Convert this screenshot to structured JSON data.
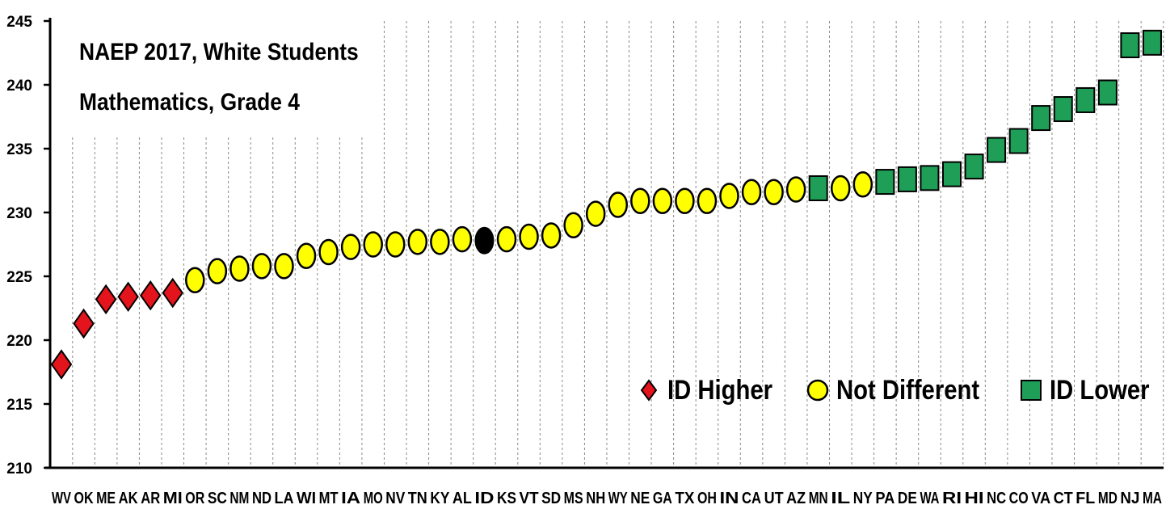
{
  "title_line1": "NAEP 2017, White Students",
  "title_line2": "Mathematics, Grade 4",
  "legend": {
    "higher": "ID Higher",
    "same": "Not Different",
    "lower": "ID Lower"
  },
  "colors": {
    "higher": "#e3141b",
    "same": "#ffff00",
    "reference": "#000000",
    "lower": "#1f9e57"
  },
  "chart_data": {
    "type": "scatter",
    "ylim": [
      210,
      245
    ],
    "yticks": [
      210,
      215,
      220,
      225,
      230,
      235,
      240,
      245
    ],
    "grid": "vertical dashed",
    "legend_placement": "bottom-right",
    "categories": [
      "WV",
      "OK",
      "ME",
      "AK",
      "AR",
      "MI",
      "OR",
      "SC",
      "NM",
      "ND",
      "LA",
      "WI",
      "MT",
      "IA",
      "MO",
      "NV",
      "TN",
      "KY",
      "AL",
      "ID",
      "KS",
      "VT",
      "SD",
      "MS",
      "NH",
      "WY",
      "NE",
      "GA",
      "TX",
      "OH",
      "IN",
      "CA",
      "UT",
      "AZ",
      "MN",
      "IL",
      "NY",
      "PA",
      "DE",
      "WA",
      "RI",
      "HI",
      "NC",
      "CO",
      "VA",
      "CT",
      "FL",
      "MD",
      "NJ",
      "MA"
    ],
    "values": [
      218.1,
      221.3,
      223.2,
      223.4,
      223.5,
      223.7,
      224.7,
      225.4,
      225.6,
      225.8,
      225.8,
      226.6,
      226.9,
      227.3,
      227.5,
      227.5,
      227.7,
      227.7,
      227.9,
      227.8,
      227.9,
      228.1,
      228.2,
      229.0,
      229.9,
      230.6,
      230.9,
      230.9,
      230.9,
      230.9,
      231.3,
      231.6,
      231.6,
      231.8,
      231.9,
      231.9,
      232.2,
      232.4,
      232.6,
      232.7,
      233.0,
      233.6,
      234.9,
      235.6,
      237.4,
      238.1,
      238.8,
      239.4,
      243.1,
      243.3
    ],
    "status": [
      "higher",
      "higher",
      "higher",
      "higher",
      "higher",
      "higher",
      "same",
      "same",
      "same",
      "same",
      "same",
      "same",
      "same",
      "same",
      "same",
      "same",
      "same",
      "same",
      "same",
      "reference",
      "same",
      "same",
      "same",
      "same",
      "same",
      "same",
      "same",
      "same",
      "same",
      "same",
      "same",
      "same",
      "same",
      "same",
      "lower",
      "same",
      "same",
      "lower",
      "lower",
      "lower",
      "lower",
      "lower",
      "lower",
      "lower",
      "lower",
      "lower",
      "lower",
      "lower",
      "lower",
      "lower"
    ]
  }
}
